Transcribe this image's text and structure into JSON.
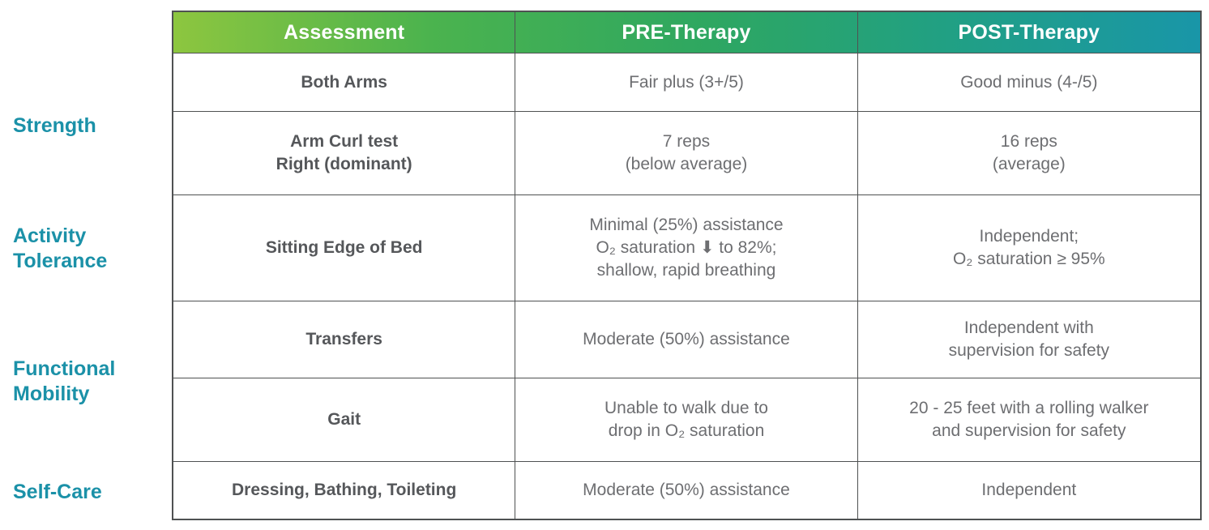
{
  "colors": {
    "header_gradient_left": "#8dc63f",
    "header_gradient_mid": "#2ea761",
    "header_gradient_right": "#1996a8",
    "header_text": "#ffffff",
    "table_border": "#4f5152",
    "category_text": "#1b91a8",
    "assessment_text": "#55575a",
    "cell_text": "#6d6e71"
  },
  "categories": [
    {
      "label": "Strength"
    },
    {
      "label": "Activity\nTolerance"
    },
    {
      "label": "Functional\nMobility"
    },
    {
      "label": "Self-Care"
    }
  ],
  "table": {
    "headers": [
      {
        "label": "Assessment"
      },
      {
        "label": "PRE-Therapy"
      },
      {
        "label": "POST-Therapy"
      }
    ],
    "rows": [
      {
        "assessment": "Both Arms",
        "pre": "Fair plus (3+/5)",
        "post": "Good minus (4-/5)"
      },
      {
        "assessment": "Arm Curl test\nRight (dominant)",
        "pre": "7 reps\n(below average)",
        "post": "16 reps\n(average)"
      },
      {
        "assessment": "Sitting Edge of Bed",
        "pre": "Minimal (25%) assistance\nO₂ saturation ⬇ to 82%;\nshallow, rapid breathing",
        "post": "Independent;\nO₂ saturation ≥ 95%"
      },
      {
        "assessment": "Transfers",
        "pre": "Moderate (50%) assistance",
        "post": "Independent with\nsupervision for safety"
      },
      {
        "assessment": "Gait",
        "pre": "Unable to walk due to\ndrop in O₂ saturation",
        "post": "20 - 25 feet with a rolling walker\nand supervision for safety"
      },
      {
        "assessment": "Dressing, Bathing, Toileting",
        "pre": "Moderate (50%) assistance",
        "post": "Independent"
      }
    ]
  },
  "chart_data": {
    "type": "table",
    "title": "",
    "columns": [
      "Assessment",
      "PRE-Therapy",
      "POST-Therapy"
    ],
    "row_categories": [
      {
        "category": "Strength",
        "row_indexes": [
          0,
          1
        ]
      },
      {
        "category": "Activity Tolerance",
        "row_indexes": [
          2
        ]
      },
      {
        "category": "Functional Mobility",
        "row_indexes": [
          3,
          4
        ]
      },
      {
        "category": "Self-Care",
        "row_indexes": [
          5
        ]
      }
    ],
    "rows": [
      [
        "Both Arms",
        "Fair plus (3+/5)",
        "Good minus (4-/5)"
      ],
      [
        "Arm Curl test Right (dominant)",
        "7 reps (below average)",
        "16 reps (average)"
      ],
      [
        "Sitting Edge of Bed",
        "Minimal (25%) assistance O₂ saturation ⬇ to 82%; shallow, rapid breathing",
        "Independent; O₂ saturation ≥ 95%"
      ],
      [
        "Transfers",
        "Moderate (50%) assistance",
        "Independent with supervision for safety"
      ],
      [
        "Gait",
        "Unable to walk due to drop in O₂ saturation",
        "20 - 25 feet with a rolling walker and supervision for safety"
      ],
      [
        "Dressing, Bathing, Toileting",
        "Moderate (50%) assistance",
        "Independent"
      ]
    ],
    "layout_hints": {
      "header_background": "green-to-teal horizontal gradient",
      "grid": true,
      "category_labels_position": "outside-left"
    }
  }
}
